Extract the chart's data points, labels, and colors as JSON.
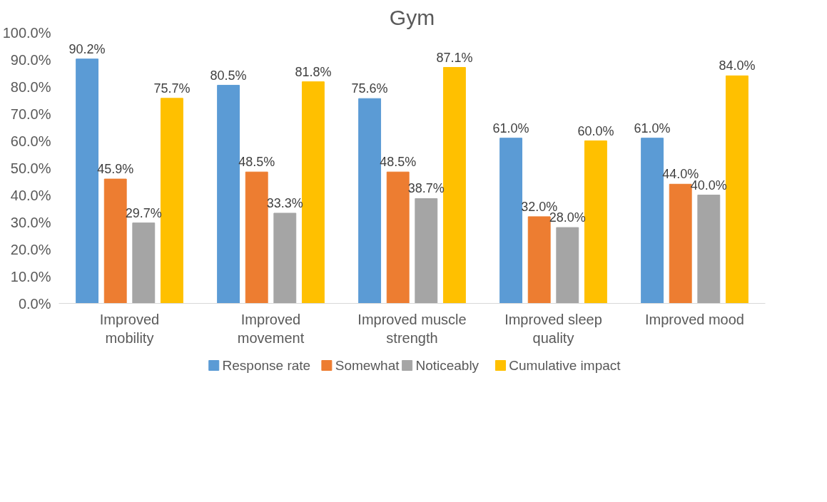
{
  "chart_data": {
    "type": "bar",
    "title": "Gym",
    "categories": [
      "Improved mobility",
      "Improved movement",
      "Improved muscle strength",
      "Improved sleep quality",
      "Improved mood"
    ],
    "series": [
      {
        "name": "Response rate",
        "color": "#5b9bd5",
        "values": [
          90.2,
          80.5,
          75.6,
          61.0,
          61.0
        ],
        "value_labels": [
          "90.2%",
          "80.5%",
          "75.6%",
          "61.0%",
          "61.0%"
        ]
      },
      {
        "name": "Somewhat",
        "color": "#ed7d31",
        "values": [
          45.9,
          48.5,
          48.5,
          32.0,
          44.0
        ],
        "value_labels": [
          "45.9%",
          "48.5%",
          "48.5%",
          "32.0%",
          "44.0%"
        ]
      },
      {
        "name": "Noticeably",
        "color": "#a5a5a5",
        "values": [
          29.7,
          33.3,
          38.7,
          28.0,
          40.0
        ],
        "value_labels": [
          "29.7%",
          "33.3%",
          "38.7%",
          "28.0%",
          "40.0%"
        ]
      },
      {
        "name": "Cumulative impact",
        "color": "#ffc000",
        "values": [
          75.7,
          81.8,
          87.1,
          60.0,
          84.0
        ],
        "value_labels": [
          "75.7%",
          "81.8%",
          "87.1%",
          "60.0%",
          "84.0%"
        ]
      }
    ],
    "ylim": [
      0,
      100
    ],
    "yticks": [
      {
        "value": 0,
        "label": "0.0%"
      },
      {
        "value": 10,
        "label": "10.0%"
      },
      {
        "value": 20,
        "label": "20.0%"
      },
      {
        "value": 30,
        "label": "30.0%"
      },
      {
        "value": 40,
        "label": "40.0%"
      },
      {
        "value": 50,
        "label": "50.0%"
      },
      {
        "value": 60,
        "label": "60.0%"
      },
      {
        "value": 70,
        "label": "70.0%"
      },
      {
        "value": 80,
        "label": "80.0%"
      },
      {
        "value": 90,
        "label": "90.0%"
      },
      {
        "value": 100,
        "label": "100.0%"
      }
    ],
    "grid": false,
    "legend": "bottom"
  }
}
